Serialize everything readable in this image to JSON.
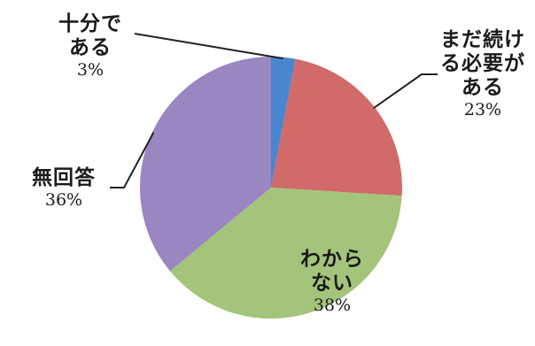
{
  "chart_data": {
    "type": "pie",
    "title": "",
    "colors": {
      "十分である": "#4a86cf",
      "まだ続ける必要がある": "#d06b6a",
      "わからない": "#a3c47a",
      "無回答": "#9a86c0"
    },
    "slices": [
      {
        "name_lines": [
          "十分で",
          "ある"
        ],
        "name": "十分である",
        "value": 3,
        "value_label": "3%"
      },
      {
        "name_lines": [
          "まだ続け",
          "る必要が",
          "ある"
        ],
        "name": "まだ続ける必要がある",
        "value": 23,
        "value_label": "23%"
      },
      {
        "name_lines": [
          "わから",
          "ない"
        ],
        "name": "わからない",
        "value": 38,
        "value_label": "38%"
      },
      {
        "name_lines": [
          "無回答"
        ],
        "name": "無回答",
        "value": 36,
        "value_label": "36%"
      }
    ]
  }
}
